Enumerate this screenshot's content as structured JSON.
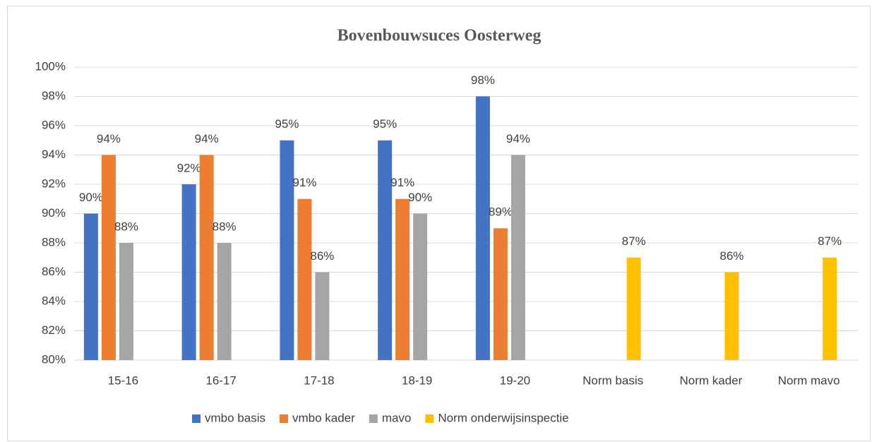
{
  "chart_data": {
    "type": "bar",
    "title": "Bovenbouwsuces Oosterweg",
    "categories": [
      "15-16",
      "16-17",
      "17-18",
      "18-19",
      "19-20",
      "Norm basis",
      "Norm kader",
      "Norm mavo"
    ],
    "series": [
      {
        "name": "vmbo basis",
        "color": "#4472c4",
        "values": [
          90,
          92,
          95,
          95,
          98,
          null,
          null,
          null
        ],
        "value_labels": [
          "90%",
          "92%",
          "95%",
          "95%",
          "98%",
          null,
          null,
          null
        ]
      },
      {
        "name": "vmbo kader",
        "color": "#ed7d31",
        "values": [
          94,
          94,
          91,
          91,
          89,
          null,
          null,
          null
        ],
        "value_labels": [
          "94%",
          "94%",
          "91%",
          "91%",
          "89%",
          null,
          null,
          null
        ]
      },
      {
        "name": "mavo",
        "color": "#a5a5a5",
        "values": [
          88,
          88,
          86,
          90,
          94,
          null,
          null,
          null
        ],
        "value_labels": [
          "88%",
          "88%",
          "86%",
          "90%",
          "94%",
          null,
          null,
          null
        ]
      },
      {
        "name": "Norm onderwijsinspectie",
        "color": "#ffc000",
        "values": [
          null,
          null,
          null,
          null,
          null,
          87,
          86,
          87
        ],
        "value_labels": [
          null,
          null,
          null,
          null,
          null,
          "87%",
          "86%",
          "87%"
        ]
      }
    ],
    "ylim": [
      80,
      100
    ],
    "yticks": [
      {
        "value": 80,
        "label": "80%"
      },
      {
        "value": 82,
        "label": "82%"
      },
      {
        "value": 84,
        "label": "84%"
      },
      {
        "value": 86,
        "label": "86%"
      },
      {
        "value": 88,
        "label": "88%"
      },
      {
        "value": 90,
        "label": "90%"
      },
      {
        "value": 92,
        "label": "92%"
      },
      {
        "value": 94,
        "label": "94%"
      },
      {
        "value": 96,
        "label": "96%"
      },
      {
        "value": 98,
        "label": "98%"
      },
      {
        "value": 100,
        "label": "100%"
      }
    ],
    "grid": true,
    "legend": "bottom"
  }
}
